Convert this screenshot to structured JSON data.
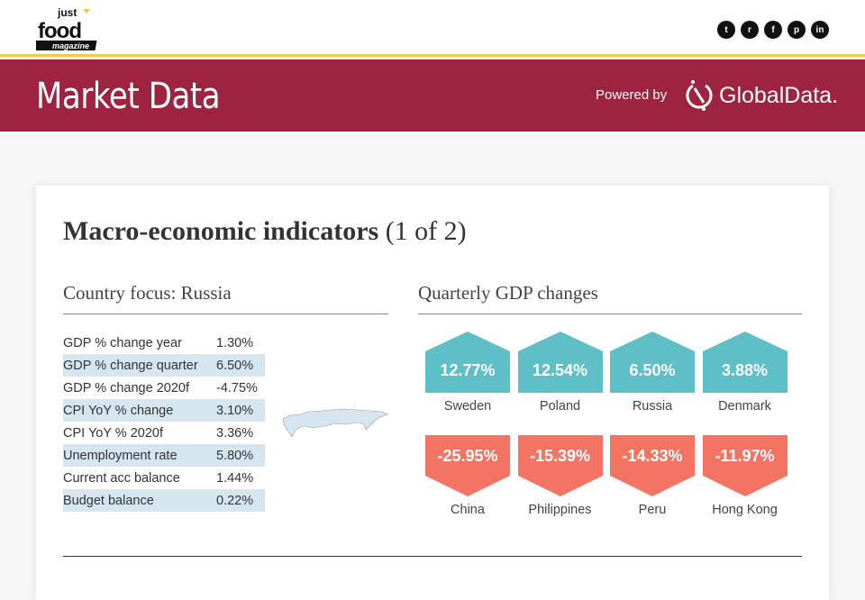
{
  "header": {
    "logo_text": [
      "just",
      "food",
      "magazine"
    ],
    "social": [
      "twitter",
      "reddit",
      "facebook",
      "pinterest",
      "linkedin"
    ]
  },
  "banner": {
    "title": "Market Data",
    "powered_by": "Powered by",
    "brand": "GlobalData."
  },
  "card": {
    "title_bold": "Macro-economic indicators",
    "title_rest": " (1 of 2)",
    "country_focus": "Country focus: Russia",
    "indicators": [
      {
        "label": "GDP % change year",
        "value": "1.30%"
      },
      {
        "label": "GDP % change quarter",
        "value": "6.50%"
      },
      {
        "label": "GDP % change 2020f",
        "value": "-4.75%"
      },
      {
        "label": "CPI YoY % change",
        "value": "3.10%"
      },
      {
        "label": "CPI YoY % 2020f",
        "value": "3.36%"
      },
      {
        "label": "Unemployment rate",
        "value": "5.80%"
      },
      {
        "label": "Current acc balance",
        "value": "1.44%"
      },
      {
        "label": "Budget balance",
        "value": "0.22%"
      }
    ],
    "gdp_title": "Quarterly GDP changes",
    "top": [
      {
        "country": "Sweden",
        "value": "12.77%"
      },
      {
        "country": "Poland",
        "value": "12.54%"
      },
      {
        "country": "Russia",
        "value": "6.50%"
      },
      {
        "country": "Denmark",
        "value": "3.88%"
      }
    ],
    "bottom": [
      {
        "country": "China",
        "value": "-25.95%"
      },
      {
        "country": "Philippines",
        "value": "-15.39%"
      },
      {
        "country": "Peru",
        "value": "-14.33%"
      },
      {
        "country": "Hong Kong",
        "value": "-11.97%"
      }
    ],
    "colors": {
      "positive": "#5fbfc6",
      "negative": "#f47463",
      "banner": "#9d2340"
    }
  }
}
